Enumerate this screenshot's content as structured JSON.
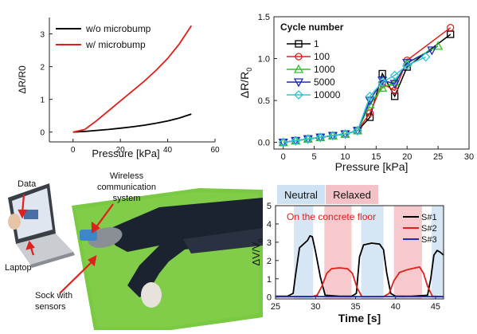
{
  "chart_data": [
    {
      "type": "line",
      "xlabel": "Pressure [kPa]",
      "ylabel": "ΔR/R0",
      "xlim": [
        -10,
        60
      ],
      "ylim": [
        -0.3,
        3.5
      ],
      "xticks": [
        0,
        20,
        40,
        60
      ],
      "yticks": [
        0,
        1,
        2,
        3
      ],
      "legend_position": "top-left",
      "series": [
        {
          "name": "w/o microbump",
          "color": "#000000",
          "x": [
            0,
            5,
            10,
            15,
            20,
            25,
            30,
            35,
            40,
            45,
            50
          ],
          "y": [
            0,
            0.02,
            0.05,
            0.08,
            0.12,
            0.16,
            0.21,
            0.27,
            0.34,
            0.43,
            0.55
          ]
        },
        {
          "name": "w/ microbump",
          "color": "#e0201b",
          "x": [
            0,
            5,
            10,
            15,
            20,
            25,
            30,
            35,
            40,
            45,
            50
          ],
          "y": [
            0,
            0.08,
            0.35,
            0.65,
            0.95,
            1.25,
            1.55,
            1.88,
            2.25,
            2.7,
            3.25
          ]
        }
      ]
    },
    {
      "type": "line",
      "xlabel": "Pressure [kPa]",
      "ylabel": "ΔR/R",
      "ylabel_sub": "0",
      "legend_title": "Cycle number",
      "legend_position": "top-left",
      "xlim": [
        -1.5,
        30
      ],
      "ylim": [
        -0.08,
        1.5
      ],
      "xticks": [
        0,
        5,
        10,
        15,
        20,
        25,
        30
      ],
      "yticks": [
        0.0,
        0.5,
        1.0,
        1.5
      ],
      "ytick_labels": [
        "0.0",
        "0.5",
        "1.0",
        "1.5"
      ],
      "series": [
        {
          "name": "1",
          "color": "#000000",
          "marker": "square",
          "x": [
            0,
            2,
            4,
            6,
            8,
            10,
            12,
            14,
            16,
            18,
            20,
            27
          ],
          "y": [
            0,
            0.02,
            0.04,
            0.06,
            0.08,
            0.1,
            0.14,
            0.3,
            0.82,
            0.55,
            0.9,
            1.29
          ]
        },
        {
          "name": "100",
          "color": "#e0201b",
          "marker": "circle",
          "x": [
            0,
            2,
            4,
            6,
            8,
            10,
            12,
            14,
            16,
            18,
            20,
            27
          ],
          "y": [
            0,
            0.02,
            0.04,
            0.06,
            0.08,
            0.1,
            0.14,
            0.35,
            0.7,
            0.62,
            0.98,
            1.37
          ]
        },
        {
          "name": "1000",
          "color": "#35c12a",
          "marker": "triangle-up",
          "x": [
            0,
            2,
            4,
            6,
            8,
            10,
            12,
            14,
            16,
            18,
            20,
            25
          ],
          "y": [
            0,
            0.02,
            0.04,
            0.06,
            0.08,
            0.1,
            0.14,
            0.45,
            0.65,
            0.72,
            0.95,
            1.15
          ]
        },
        {
          "name": "5000",
          "color": "#1c2cb8",
          "marker": "triangle-down",
          "x": [
            0,
            2,
            4,
            6,
            8,
            10,
            12,
            14,
            16,
            18,
            20,
            24
          ],
          "y": [
            0,
            0.02,
            0.04,
            0.06,
            0.08,
            0.1,
            0.14,
            0.5,
            0.74,
            0.7,
            0.95,
            1.1
          ]
        },
        {
          "name": "10000",
          "color": "#2ec5d8",
          "marker": "diamond",
          "x": [
            0,
            2,
            4,
            6,
            8,
            10,
            12,
            14,
            16,
            18,
            20,
            23
          ],
          "y": [
            0,
            0.02,
            0.04,
            0.06,
            0.08,
            0.1,
            0.14,
            0.55,
            0.72,
            0.8,
            0.92,
            1.02
          ]
        }
      ]
    },
    {
      "type": "line",
      "xlabel": "Time [s]",
      "ylabel": "ΔV/V",
      "ylabel_sub": "0",
      "xlim": [
        25,
        46
      ],
      "ylim": [
        -0.1,
        5
      ],
      "xticks": [
        25,
        30,
        35,
        40,
        45
      ],
      "yticks": [
        0,
        1,
        2,
        3,
        4,
        5
      ],
      "legend_position": "top-right",
      "header_labels": [
        "Neutral",
        "Relaxed"
      ],
      "annotation": "On the concrete floor",
      "regions": [
        {
          "type": "neutral",
          "start": 27.3,
          "end": 29.7
        },
        {
          "type": "relaxed",
          "start": 31.1,
          "end": 34.5
        },
        {
          "type": "neutral",
          "start": 35.7,
          "end": 38.5
        },
        {
          "type": "relaxed",
          "start": 39.8,
          "end": 43.3
        },
        {
          "type": "neutral",
          "start": 44.5,
          "end": 46
        }
      ],
      "series": [
        {
          "name": "S#1",
          "color": "#000000",
          "x": [
            25,
            26.5,
            27.2,
            27.5,
            28,
            28.5,
            29,
            29.3,
            29.6,
            30,
            30.6,
            31.2,
            33,
            34.5,
            35.1,
            35.5,
            36,
            37,
            38,
            38.5,
            38.9,
            39.4,
            40,
            42,
            44,
            44.4,
            44.8,
            45.2,
            45.6,
            46
          ],
          "y": [
            0.05,
            0.05,
            0.2,
            1.2,
            2.7,
            2.9,
            3.1,
            3.35,
            3.3,
            2.5,
            1.1,
            0.1,
            0.05,
            0.05,
            0.2,
            2.2,
            2.85,
            2.95,
            2.9,
            2.6,
            1.3,
            0.2,
            0.05,
            0.05,
            0.1,
            1.0,
            2.3,
            2.55,
            2.45,
            2.3
          ]
        },
        {
          "name": "S#2",
          "color": "#e0201b",
          "x": [
            25,
            29.5,
            30.2,
            30.8,
            31.4,
            32,
            33,
            34,
            34.6,
            35.2,
            35.8,
            38.5,
            39.2,
            39.8,
            40.5,
            41.5,
            42.5,
            43,
            43.5,
            44,
            44.6,
            46
          ],
          "y": [
            0.02,
            0.02,
            0.1,
            0.6,
            1.3,
            1.55,
            1.6,
            1.55,
            1.3,
            0.5,
            0.02,
            0.02,
            0.2,
            0.9,
            1.35,
            1.5,
            1.6,
            1.65,
            1.3,
            0.6,
            0.05,
            0.02
          ]
        },
        {
          "name": "S#3",
          "color": "#1c2cb8",
          "x": [
            25,
            30,
            35,
            40,
            46
          ],
          "y": [
            0.02,
            0.03,
            0.02,
            0.03,
            0.02
          ]
        }
      ]
    }
  ],
  "photo": {
    "labels": {
      "data": "Data",
      "wireless": "Wireless communication system",
      "laptop": "Laptop",
      "sock": "Sock with sensors"
    }
  }
}
